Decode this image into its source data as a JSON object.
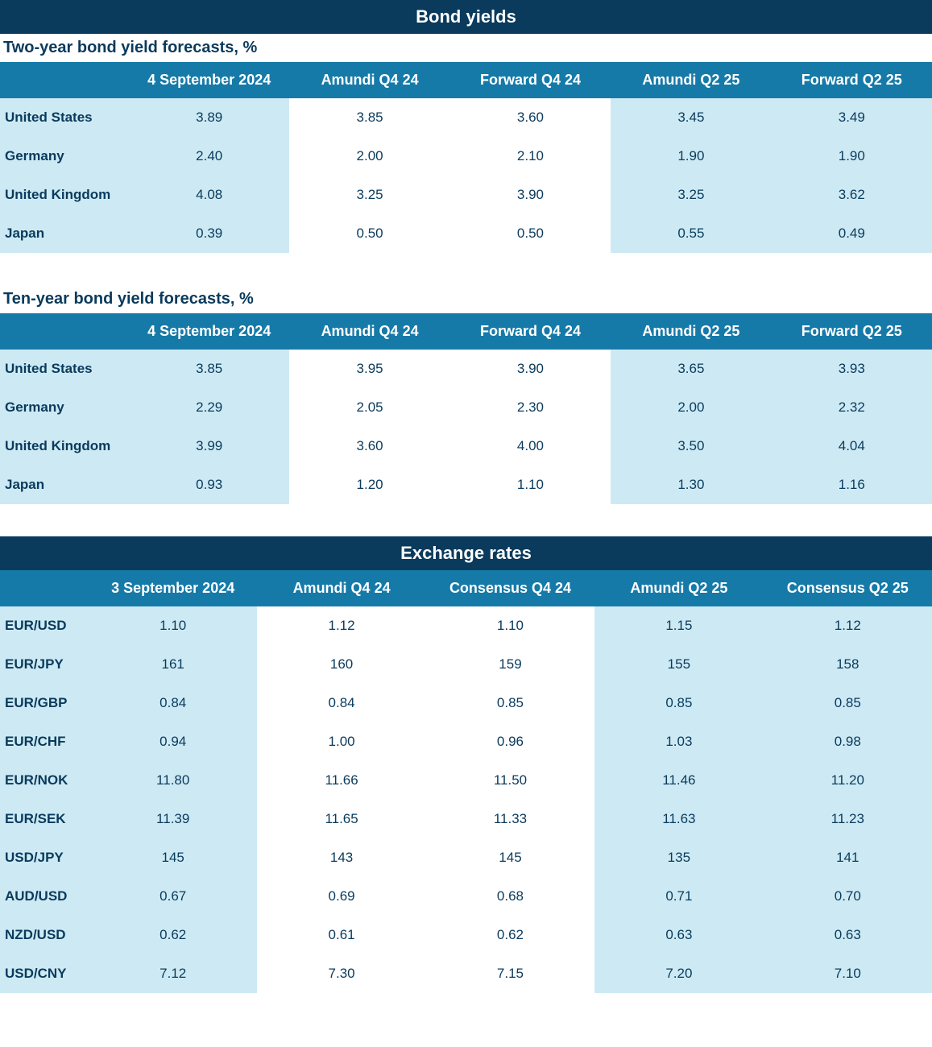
{
  "colors": {
    "section_title_bg": "#0a3a5c",
    "section_title_fg": "#ffffff",
    "subtitle_fg": "#0a3a5c",
    "header_bg": "#167aa8",
    "header_fg": "#ffffff",
    "cell_shaded_bg": "#cdeaf4",
    "cell_plain_bg": "#ffffff",
    "cell_fg": "#0a3a5c"
  },
  "typography": {
    "title_fontsize": 22,
    "subtitle_fontsize": 20,
    "header_fontsize": 18,
    "cell_fontsize": 17,
    "font_family": "Arial"
  },
  "sections": [
    {
      "title": "Bond yields",
      "tables": [
        {
          "subtitle": "Two-year bond yield forecasts, %",
          "columns": [
            "",
            "4 September 2024",
            "Amundi Q4 24",
            "Forward Q4 24",
            "Amundi Q2 25",
            "Forward Q2 25"
          ],
          "column_shaded": [
            true,
            true,
            false,
            false,
            true,
            true
          ],
          "first_col_width": 160,
          "rows": [
            [
              "United States",
              "3.89",
              "3.85",
              "3.60",
              "3.45",
              "3.49"
            ],
            [
              "Germany",
              "2.40",
              "2.00",
              "2.10",
              "1.90",
              "1.90"
            ],
            [
              "United Kingdom",
              "4.08",
              "3.25",
              "3.90",
              "3.25",
              "3.62"
            ],
            [
              "Japan",
              "0.39",
              "0.50",
              "0.50",
              "0.55",
              "0.49"
            ]
          ]
        },
        {
          "subtitle": "Ten-year bond yield forecasts, %",
          "columns": [
            "",
            "4 September 2024",
            "Amundi Q4 24",
            "Forward Q4 24",
            "Amundi Q2 25",
            "Forward Q2 25"
          ],
          "column_shaded": [
            true,
            true,
            false,
            false,
            true,
            true
          ],
          "first_col_width": 160,
          "rows": [
            [
              "United States",
              "3.85",
              "3.95",
              "3.90",
              "3.65",
              "3.93"
            ],
            [
              "Germany",
              "2.29",
              "2.05",
              "2.30",
              "2.00",
              "2.32"
            ],
            [
              "United Kingdom",
              "3.99",
              "3.60",
              "4.00",
              "3.50",
              "4.04"
            ],
            [
              "Japan",
              "0.93",
              "1.20",
              "1.10",
              "1.30",
              "1.16"
            ]
          ]
        }
      ]
    },
    {
      "title": "Exchange rates",
      "tables": [
        {
          "subtitle": "",
          "columns": [
            "",
            "3 September 2024",
            "Amundi Q4 24",
            "Consensus Q4 24",
            "Amundi Q2 25",
            "Consensus Q2 25"
          ],
          "column_shaded": [
            true,
            true,
            false,
            false,
            true,
            true
          ],
          "first_col_width": 110,
          "rows": [
            [
              "EUR/USD",
              "1.10",
              "1.12",
              "1.10",
              "1.15",
              "1.12"
            ],
            [
              "EUR/JPY",
              "161",
              "160",
              "159",
              "155",
              "158"
            ],
            [
              "EUR/GBP",
              "0.84",
              "0.84",
              "0.85",
              "0.85",
              "0.85"
            ],
            [
              "EUR/CHF",
              "0.94",
              "1.00",
              "0.96",
              "1.03",
              "0.98"
            ],
            [
              "EUR/NOK",
              "11.80",
              "11.66",
              "11.50",
              "11.46",
              "11.20"
            ],
            [
              "EUR/SEK",
              "11.39",
              "11.65",
              "11.33",
              "11.63",
              "11.23"
            ],
            [
              "USD/JPY",
              "145",
              "143",
              "145",
              "135",
              "141"
            ],
            [
              "AUD/USD",
              "0.67",
              "0.69",
              "0.68",
              "0.71",
              "0.70"
            ],
            [
              "NZD/USD",
              "0.62",
              "0.61",
              "0.62",
              "0.63",
              "0.63"
            ],
            [
              "USD/CNY",
              "7.12",
              "7.30",
              "7.15",
              "7.20",
              "7.10"
            ]
          ]
        }
      ]
    }
  ]
}
